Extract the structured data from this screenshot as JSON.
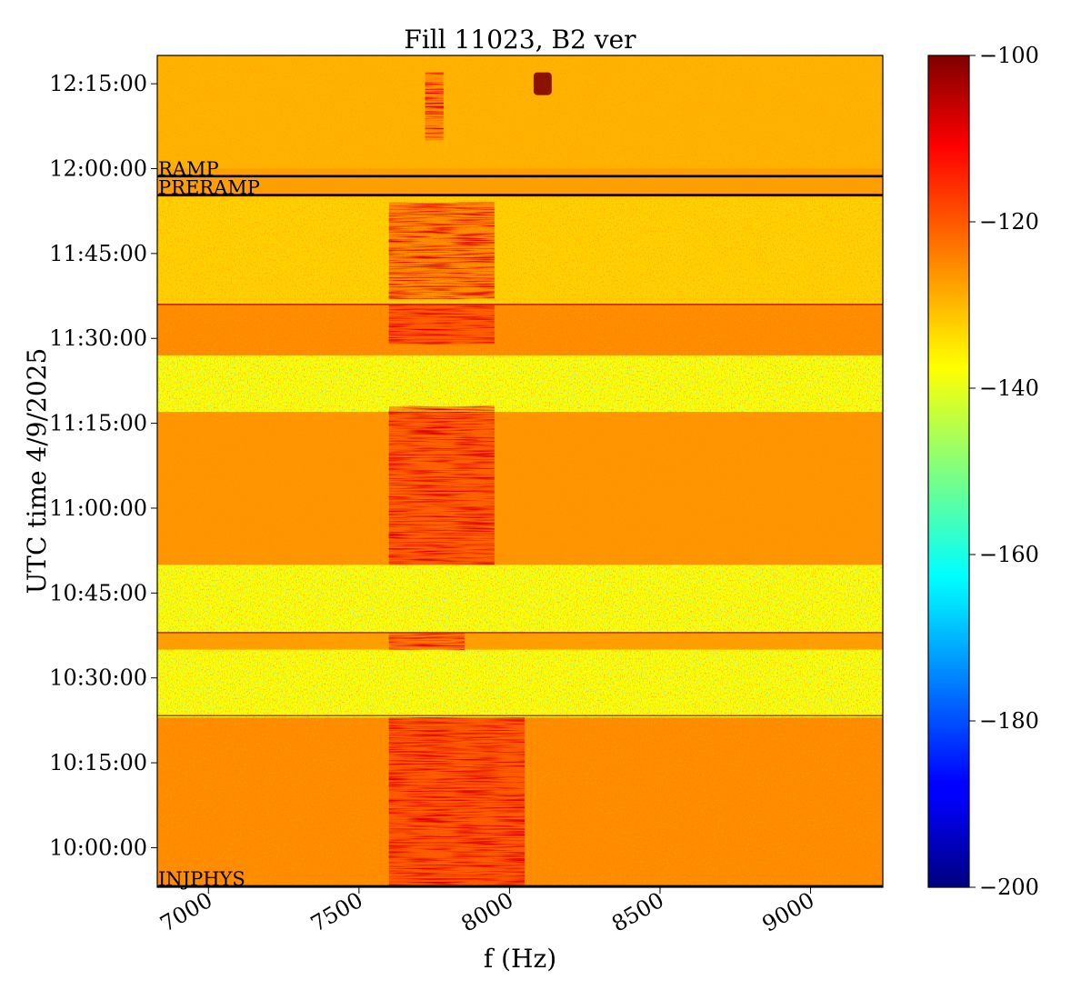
{
  "chart_data": {
    "type": "heatmap",
    "title": "Fill 11023, B2 ver",
    "xlabel": "f (Hz)",
    "ylabel": "UTC time 4/9/2025",
    "x_range": [
      6830,
      9240
    ],
    "y_range": [
      "09:53:00",
      "12:20:00"
    ],
    "x_ticks": [
      {
        "value": 7000,
        "label": "7000"
      },
      {
        "value": 7500,
        "label": "7500"
      },
      {
        "value": 8000,
        "label": "8000"
      },
      {
        "value": 8500,
        "label": "8500"
      },
      {
        "value": 9000,
        "label": "9000"
      }
    ],
    "y_ticks": [
      {
        "value": "10:00:00",
        "label": "10:00:00"
      },
      {
        "value": "10:15:00",
        "label": "10:15:00"
      },
      {
        "value": "10:30:00",
        "label": "10:30:00"
      },
      {
        "value": "10:45:00",
        "label": "10:45:00"
      },
      {
        "value": "11:00:00",
        "label": "11:00:00"
      },
      {
        "value": "11:15:00",
        "label": "11:15:00"
      },
      {
        "value": "11:30:00",
        "label": "11:30:00"
      },
      {
        "value": "11:45:00",
        "label": "11:45:00"
      },
      {
        "value": "12:00:00",
        "label": "12:00:00"
      },
      {
        "value": "12:15:00",
        "label": "12:15:00"
      }
    ],
    "colorbar": {
      "colormap": "jet",
      "range": [
        -200,
        -100
      ],
      "ticks": [
        {
          "value": -100,
          "label": "−100"
        },
        {
          "value": -120,
          "label": "−120"
        },
        {
          "value": -140,
          "label": "−140"
        },
        {
          "value": -160,
          "label": "−160"
        },
        {
          "value": -180,
          "label": "−180"
        },
        {
          "value": -200,
          "label": "−200"
        }
      ]
    },
    "mode_markers": [
      {
        "label": "RAMP",
        "time": "11:58:40"
      },
      {
        "label": "PRERAMP",
        "time": "11:55:20"
      },
      {
        "label": "INJPHYS",
        "time": "09:53:10"
      }
    ],
    "background_level": -128,
    "time_bands": [
      {
        "from": "12:00",
        "to": "12:20",
        "level": -130
      },
      {
        "from": "11:55",
        "to": "12:00",
        "level": -128
      },
      {
        "from": "11:36",
        "to": "11:55",
        "level": -133
      },
      {
        "from": "11:27",
        "to": "11:36",
        "level": -126
      },
      {
        "from": "11:17",
        "to": "11:27",
        "level": -138
      },
      {
        "from": "10:50",
        "to": "11:17",
        "level": -127
      },
      {
        "from": "10:38",
        "to": "10:50",
        "level": -138
      },
      {
        "from": "10:35",
        "to": "10:38",
        "level": -128
      },
      {
        "from": "10:23",
        "to": "10:35",
        "level": -138
      },
      {
        "from": "09:53",
        "to": "10:23",
        "level": -126
      }
    ],
    "thin_lines": [
      "11:36:00",
      "10:38:00",
      "10:23:20"
    ],
    "features": [
      {
        "from": "11:37",
        "to": "11:54",
        "f_from": 7600,
        "f_to": 7950,
        "level": -114
      },
      {
        "from": "11:29",
        "to": "11:36",
        "f_from": 7600,
        "f_to": 7950,
        "level": -113
      },
      {
        "from": "10:50",
        "to": "11:18",
        "f_from": 7600,
        "f_to": 7950,
        "level": -112
      },
      {
        "from": "10:35",
        "to": "10:38",
        "f_from": 7600,
        "f_to": 7850,
        "level": -118
      },
      {
        "from": "09:53",
        "to": "10:23",
        "f_from": 7600,
        "f_to": 8050,
        "level": -112
      },
      {
        "from": "12:05",
        "to": "12:17",
        "f_from": 7720,
        "f_to": 7780,
        "level": -120
      },
      {
        "from": "12:13",
        "to": "12:17",
        "f_from": 8080,
        "f_to": 8140,
        "level": -100
      }
    ]
  }
}
